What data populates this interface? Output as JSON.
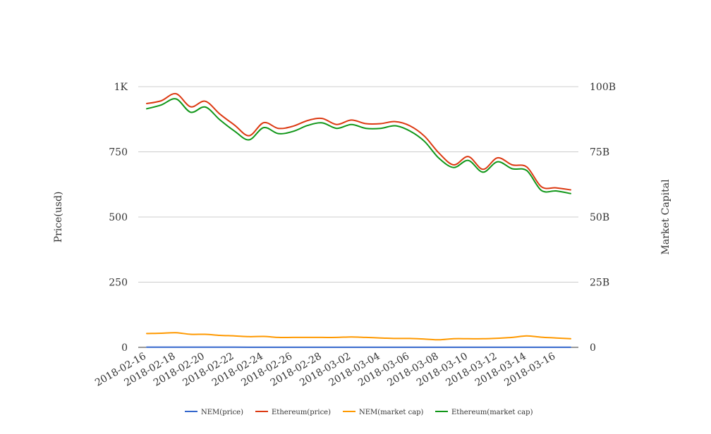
{
  "chart_data": {
    "type": "line",
    "xlabel": "",
    "y_left_label": "Price(usd)",
    "y_right_label": "Market Capital",
    "y_left_ticks": [
      "0",
      "250",
      "500",
      "750",
      "1K"
    ],
    "y_right_ticks": [
      "0",
      "25B",
      "50B",
      "75B",
      "100B"
    ],
    "y_left_lim": [
      0,
      1000
    ],
    "y_right_lim": [
      0,
      100000000000
    ],
    "grid": true,
    "legend_position": "bottom",
    "x_tick_labels": [
      "2018-02-16",
      "2018-02-18",
      "2018-02-20",
      "2018-02-22",
      "2018-02-24",
      "2018-02-26",
      "2018-02-28",
      "2018-03-02",
      "2018-03-04",
      "2018-03-06",
      "2018-03-08",
      "2018-03-10",
      "2018-03-12",
      "2018-03-14",
      "2018-03-16"
    ],
    "x": [
      "2018-02-16",
      "2018-02-17",
      "2018-02-18",
      "2018-02-19",
      "2018-02-20",
      "2018-02-21",
      "2018-02-22",
      "2018-02-23",
      "2018-02-24",
      "2018-02-25",
      "2018-02-26",
      "2018-02-27",
      "2018-02-28",
      "2018-03-01",
      "2018-03-02",
      "2018-03-03",
      "2018-03-04",
      "2018-03-05",
      "2018-03-06",
      "2018-03-07",
      "2018-03-08",
      "2018-03-09",
      "2018-03-10",
      "2018-03-11",
      "2018-03-12",
      "2018-03-13",
      "2018-03-14",
      "2018-03-15",
      "2018-03-16",
      "2018-03-17"
    ],
    "series": [
      {
        "name": "NEM(price)",
        "axis": "left",
        "color": "#3366cc",
        "values": [
          0.6,
          0.6,
          0.6,
          0.5,
          0.5,
          0.5,
          0.5,
          0.4,
          0.4,
          0.4,
          0.4,
          0.4,
          0.4,
          0.4,
          0.4,
          0.4,
          0.4,
          0.3,
          0.3,
          0.3,
          0.3,
          0.3,
          0.3,
          0.3,
          0.3,
          0.3,
          0.4,
          0.3,
          0.3,
          0.3
        ]
      },
      {
        "name": "Ethereum(price)",
        "axis": "left",
        "color": "#dc3912",
        "values": [
          935,
          946,
          973,
          923,
          944,
          895,
          853,
          812,
          862,
          840,
          848,
          870,
          878,
          855,
          872,
          858,
          858,
          866,
          850,
          810,
          745,
          700,
          732,
          683,
          727,
          700,
          692,
          616,
          612,
          604
        ]
      },
      {
        "name": "NEM(market cap)",
        "axis": "right",
        "color": "#ff9900",
        "values": [
          5300000000,
          5400000000,
          5600000000,
          5000000000,
          5000000000,
          4600000000,
          4400000000,
          4100000000,
          4200000000,
          3800000000,
          3800000000,
          3800000000,
          3800000000,
          3800000000,
          4000000000,
          3800000000,
          3600000000,
          3400000000,
          3400000000,
          3200000000,
          2900000000,
          3300000000,
          3300000000,
          3300000000,
          3500000000,
          3800000000,
          4400000000,
          3900000000,
          3600000000,
          3300000000
        ]
      },
      {
        "name": "Ethereum(market cap)",
        "axis": "right",
        "color": "#109618",
        "values": [
          91500000000,
          93000000000,
          95300000000,
          90200000000,
          92200000000,
          87300000000,
          83000000000,
          79600000000,
          84300000000,
          82000000000,
          82800000000,
          85100000000,
          86100000000,
          84000000000,
          85500000000,
          84000000000,
          84000000000,
          85000000000,
          83000000000,
          79000000000,
          72500000000,
          69000000000,
          71700000000,
          67200000000,
          71200000000,
          68500000000,
          67800000000,
          60200000000,
          60000000000,
          59000000000
        ]
      }
    ]
  }
}
